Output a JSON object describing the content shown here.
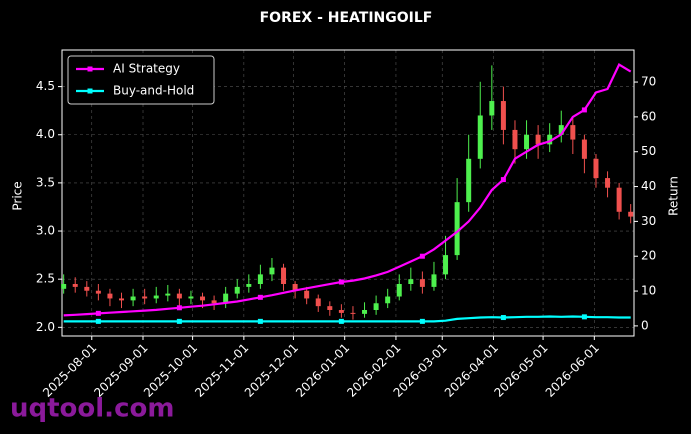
{
  "chart_data": {
    "type": "candlestick",
    "title": "FOREX - HEATINGOILF",
    "ylabel": "Price",
    "y2label": "Return",
    "watermark": "uqtool.com",
    "x": [
      "2025-07-15",
      "2025-07-22",
      "2025-07-29",
      "2025-08-05",
      "2025-08-12",
      "2025-08-19",
      "2025-08-26",
      "2025-09-02",
      "2025-09-09",
      "2025-09-16",
      "2025-09-23",
      "2025-09-30",
      "2025-10-07",
      "2025-10-14",
      "2025-10-21",
      "2025-10-28",
      "2025-11-04",
      "2025-11-11",
      "2025-11-18",
      "2025-11-25",
      "2025-12-02",
      "2025-12-09",
      "2025-12-16",
      "2025-12-23",
      "2025-12-30",
      "2026-01-06",
      "2026-01-13",
      "2026-01-20",
      "2026-01-27",
      "2026-02-03",
      "2026-02-10",
      "2026-02-17",
      "2026-02-24",
      "2026-03-03",
      "2026-03-10",
      "2026-03-17",
      "2026-03-24",
      "2026-03-31",
      "2026-04-07",
      "2026-04-14",
      "2026-04-21",
      "2026-04-28",
      "2026-05-05",
      "2026-05-12",
      "2026-05-19",
      "2026-05-26",
      "2026-06-02",
      "2026-06-09",
      "2026-06-16",
      "2026-06-23"
    ],
    "open": [
      2.4,
      2.45,
      2.42,
      2.38,
      2.35,
      2.3,
      2.28,
      2.32,
      2.3,
      2.33,
      2.35,
      2.3,
      2.32,
      2.28,
      2.25,
      2.35,
      2.42,
      2.45,
      2.55,
      2.62,
      2.45,
      2.38,
      2.3,
      2.22,
      2.18,
      2.15,
      2.14,
      2.18,
      2.25,
      2.32,
      2.45,
      2.5,
      2.42,
      2.55,
      2.75,
      3.3,
      3.75,
      4.2,
      4.35,
      4.05,
      3.85,
      4.0,
      3.9,
      4.0,
      4.1,
      3.95,
      3.75,
      3.55,
      3.45,
      3.2
    ],
    "high": [
      2.55,
      2.52,
      2.48,
      2.45,
      2.4,
      2.36,
      2.4,
      2.4,
      2.42,
      2.44,
      2.4,
      2.38,
      2.36,
      2.33,
      2.42,
      2.5,
      2.55,
      2.65,
      2.72,
      2.66,
      2.48,
      2.42,
      2.34,
      2.27,
      2.24,
      2.22,
      2.26,
      2.33,
      2.4,
      2.55,
      2.62,
      2.58,
      2.68,
      2.95,
      3.55,
      4.0,
      4.55,
      4.72,
      4.5,
      4.15,
      4.15,
      4.1,
      4.12,
      4.25,
      4.18,
      4.0,
      3.8,
      3.62,
      3.5,
      3.28
    ],
    "low": [
      2.35,
      2.36,
      2.32,
      2.28,
      2.22,
      2.2,
      2.22,
      2.24,
      2.25,
      2.27,
      2.22,
      2.24,
      2.2,
      2.18,
      2.2,
      2.3,
      2.36,
      2.4,
      2.48,
      2.38,
      2.3,
      2.24,
      2.16,
      2.12,
      2.1,
      2.08,
      2.1,
      2.13,
      2.2,
      2.28,
      2.38,
      2.35,
      2.38,
      2.5,
      2.7,
      3.2,
      3.65,
      4.05,
      3.9,
      3.7,
      3.75,
      3.75,
      3.82,
      3.92,
      3.8,
      3.6,
      3.45,
      3.35,
      3.12,
      3.08
    ],
    "close": [
      2.45,
      2.42,
      2.38,
      2.35,
      2.3,
      2.28,
      2.32,
      2.3,
      2.33,
      2.35,
      2.3,
      2.32,
      2.28,
      2.25,
      2.35,
      2.42,
      2.45,
      2.55,
      2.62,
      2.45,
      2.38,
      2.3,
      2.22,
      2.18,
      2.15,
      2.14,
      2.18,
      2.25,
      2.32,
      2.45,
      2.5,
      2.42,
      2.55,
      2.75,
      3.3,
      3.75,
      4.2,
      4.35,
      4.05,
      3.85,
      4.0,
      3.9,
      4.0,
      4.1,
      3.95,
      3.75,
      3.55,
      3.45,
      3.2,
      3.15
    ],
    "up_color": "#4ef04e",
    "down_color": "#f0504e",
    "series": [
      {
        "name": "AI Strategy",
        "color": "#ff00ff",
        "axis": "y2",
        "values": [
          3,
          3.2,
          3.4,
          3.6,
          3.8,
          4,
          4.2,
          4.4,
          4.6,
          4.9,
          5.2,
          5.5,
          5.8,
          6.2,
          6.6,
          7,
          7.6,
          8.2,
          8.8,
          9.5,
          10.2,
          10.8,
          11.4,
          12,
          12.6,
          13,
          13.6,
          14.5,
          15.5,
          17,
          18.5,
          20,
          22,
          24.5,
          27,
          30,
          34,
          39,
          42,
          48,
          50,
          52,
          53,
          55,
          60,
          62,
          67,
          68,
          75,
          73
        ]
      },
      {
        "name": "Buy-and-Hold",
        "color": "#00ffff",
        "axis": "y2",
        "values": [
          1.3,
          1.3,
          1.3,
          1.3,
          1.3,
          1.3,
          1.3,
          1.3,
          1.3,
          1.3,
          1.3,
          1.3,
          1.3,
          1.3,
          1.3,
          1.3,
          1.3,
          1.3,
          1.3,
          1.3,
          1.3,
          1.3,
          1.3,
          1.3,
          1.3,
          1.3,
          1.3,
          1.3,
          1.3,
          1.3,
          1.3,
          1.3,
          1.3,
          1.5,
          2,
          2.2,
          2.4,
          2.5,
          2.4,
          2.5,
          2.6,
          2.6,
          2.7,
          2.6,
          2.7,
          2.6,
          2.5,
          2.5,
          2.4,
          2.4
        ]
      }
    ],
    "xlim": [
      "2025-07-14",
      "2026-06-25"
    ],
    "xticks": [
      "2025-08-01",
      "2025-09-01",
      "2025-10-01",
      "2025-11-01",
      "2025-12-01",
      "2026-01-01",
      "2026-02-01",
      "2026-03-01",
      "2026-04-01",
      "2026-05-01",
      "2026-06-01"
    ],
    "ylim": [
      1.91,
      4.88
    ],
    "yticks": [
      {
        "value": 2,
        "label": "2.0"
      },
      {
        "value": 2.5,
        "label": "2.5"
      },
      {
        "value": 3,
        "label": "3.0"
      },
      {
        "value": 3.5,
        "label": "3.5"
      },
      {
        "value": 4,
        "label": "4.0"
      },
      {
        "value": 4.5,
        "label": "4.5"
      }
    ],
    "y2lim": [
      -2.9,
      79.2
    ],
    "y2ticks": [
      0,
      10,
      20,
      30,
      40,
      50,
      60,
      70
    ],
    "grid": true,
    "legend": "upper left"
  }
}
